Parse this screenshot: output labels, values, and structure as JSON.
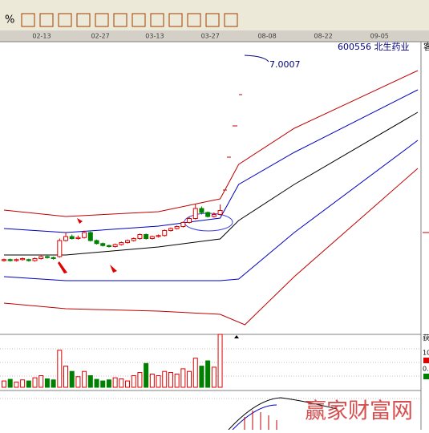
{
  "toolbar": {
    "percent": "%"
  },
  "chart_data": {
    "type": "candlestick",
    "stock": "600556 北生药业",
    "marker_label": "7.0007",
    "xlim": [
      -0.65,
      67
    ],
    "ylim": [
      4.28,
      7.12
    ],
    "xticks": [
      {
        "value": 6.1,
        "label": "02-13"
      },
      {
        "value": 15.6,
        "label": "02-27"
      },
      {
        "value": 24.4,
        "label": "03-13"
      },
      {
        "value": 33.4,
        "label": "03-27"
      },
      {
        "value": 42.6,
        "label": "08-08"
      },
      {
        "value": 51.7,
        "label": "08-22"
      },
      {
        "value": 60.8,
        "label": "09-05"
      }
    ],
    "open": [
      5.0,
      5.01,
      5.0,
      5.01,
      5.01,
      5.0,
      5.02,
      5.04,
      5.03,
      5.04,
      5.2,
      5.24,
      5.22,
      5.23,
      5.28,
      5.2,
      5.17,
      5.15,
      5.14,
      5.16,
      5.18,
      5.2,
      5.22,
      5.26,
      5.22,
      5.24,
      5.25,
      5.3,
      5.32,
      5.34,
      5.38,
      5.42,
      5.52,
      5.48,
      5.44,
      5.46
    ],
    "close": [
      5.01,
      5.0,
      5.01,
      5.02,
      5.0,
      5.02,
      5.04,
      5.03,
      5.02,
      5.2,
      5.24,
      5.22,
      5.23,
      5.28,
      5.2,
      5.17,
      5.15,
      5.14,
      5.16,
      5.18,
      5.2,
      5.22,
      5.26,
      5.22,
      5.24,
      5.25,
      5.3,
      5.32,
      5.34,
      5.38,
      5.42,
      5.52,
      5.48,
      5.44,
      5.46,
      5.5
    ],
    "high": [
      5.02,
      5.02,
      5.02,
      5.03,
      5.02,
      5.03,
      5.05,
      5.05,
      5.04,
      5.22,
      5.28,
      5.26,
      5.25,
      5.3,
      5.29,
      5.21,
      5.18,
      5.16,
      5.17,
      5.19,
      5.21,
      5.23,
      5.27,
      5.27,
      5.25,
      5.26,
      5.31,
      5.33,
      5.35,
      5.39,
      5.44,
      5.56,
      5.54,
      5.49,
      5.48,
      5.56
    ],
    "low": [
      4.99,
      4.99,
      4.99,
      5.0,
      4.99,
      4.99,
      5.01,
      5.02,
      5.01,
      5.03,
      5.19,
      5.21,
      5.21,
      5.22,
      5.19,
      5.16,
      5.14,
      5.13,
      5.13,
      5.15,
      5.17,
      5.19,
      5.21,
      5.21,
      5.21,
      5.23,
      5.24,
      5.29,
      5.31,
      5.33,
      5.37,
      5.41,
      5.46,
      5.43,
      5.43,
      5.45
    ],
    "up_color": "#e00000",
    "down_color": "#008000",
    "bands": [
      {
        "color": "#c00000",
        "x": [
          0,
          10,
          25,
          35,
          38,
          47,
          67
        ],
        "values": [
          5.504,
          5.44,
          5.488,
          5.616,
          5.96,
          6.32,
          6.896
        ]
      },
      {
        "color": "#0000c0",
        "x": [
          0,
          10,
          25,
          35,
          38,
          47,
          67
        ],
        "values": [
          5.32,
          5.28,
          5.344,
          5.424,
          5.76,
          6.08,
          6.704
        ]
      },
      {
        "color": "#000000",
        "x": [
          0,
          10,
          25,
          35,
          38,
          47,
          67
        ],
        "values": [
          5.056,
          5.056,
          5.136,
          5.216,
          5.4,
          5.76,
          6.48
        ]
      },
      {
        "color": "#0000c0",
        "x": [
          0,
          10,
          25,
          35,
          38,
          47,
          67
        ],
        "values": [
          4.84,
          4.8,
          4.8,
          4.8,
          4.816,
          5.28,
          6.2
        ]
      },
      {
        "color": "#c00000",
        "x": [
          0,
          10,
          25,
          35,
          39,
          47,
          67
        ],
        "values": [
          4.576,
          4.52,
          4.496,
          4.464,
          4.36,
          4.84,
          5.92
        ]
      }
    ],
    "volume": {
      "ylim": [
        0,
        100
      ],
      "values": [
        12,
        15,
        10,
        14,
        12,
        18,
        22,
        16,
        14,
        70,
        40,
        30,
        20,
        30,
        22,
        15,
        12,
        14,
        18,
        16,
        12,
        22,
        28,
        45,
        25,
        22,
        30,
        28,
        25,
        35,
        30,
        55,
        40,
        50,
        38,
        100
      ]
    }
  },
  "sidebar": {
    "top": "客",
    "vol_title": "获",
    "vol_a": "10",
    "vol_b": "0."
  },
  "watermark": "赢家财富网"
}
